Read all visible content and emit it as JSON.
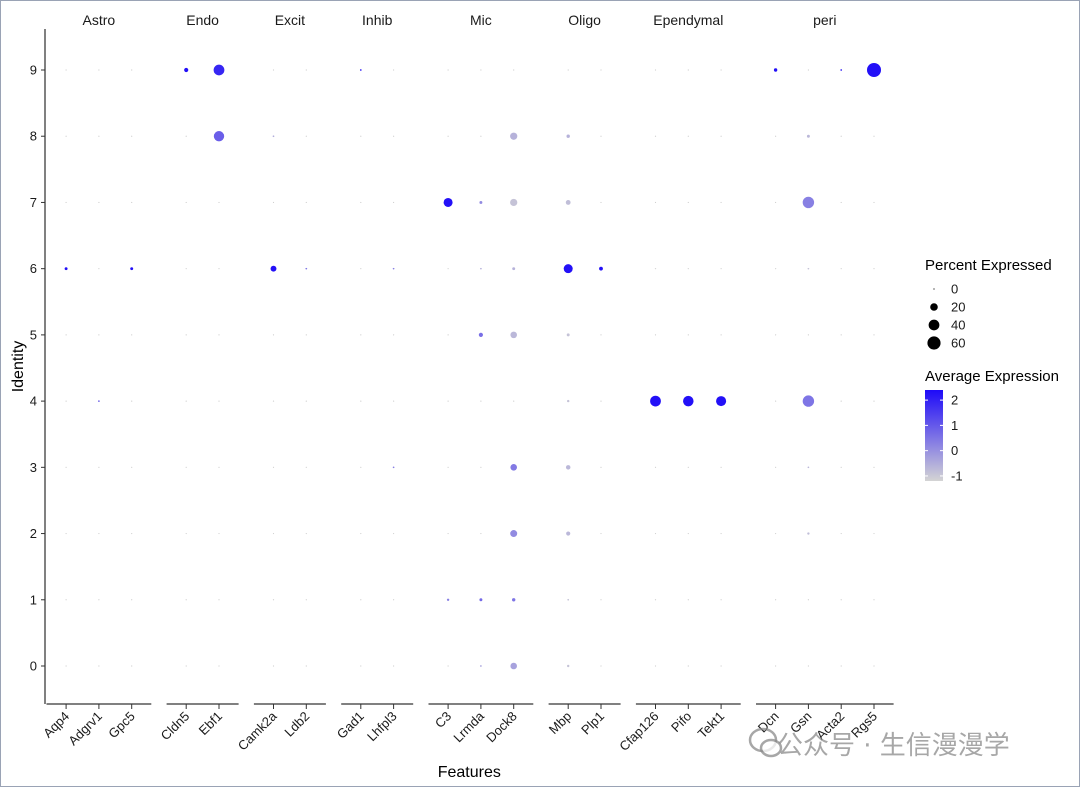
{
  "chart_data": {
    "type": "dotplot",
    "xlabel": "Features",
    "ylabel": "Identity",
    "identities": [
      "0",
      "1",
      "2",
      "3",
      "4",
      "5",
      "6",
      "7",
      "8",
      "9"
    ],
    "groups": [
      {
        "name": "Astro",
        "features": [
          "Aqp4",
          "Adgrv1",
          "Gpc5"
        ]
      },
      {
        "name": "Endo",
        "features": [
          "Cldn5",
          "Ebf1"
        ]
      },
      {
        "name": "Excit",
        "features": [
          "Camk2a",
          "Ldb2"
        ]
      },
      {
        "name": "Inhib",
        "features": [
          "Gad1",
          "Lhfpl3"
        ]
      },
      {
        "name": "Mic",
        "features": [
          "C3",
          "Lrmda",
          "Dock8"
        ]
      },
      {
        "name": "Oligo",
        "features": [
          "Mbp",
          "Plp1"
        ]
      },
      {
        "name": "Ependymal",
        "features": [
          "Cfap126",
          "Pifo",
          "Tekt1"
        ]
      },
      {
        "name": "peri",
        "features": [
          "Dcn",
          "Gsn",
          "Acta2",
          "Rgs5"
        ]
      }
    ],
    "points": [
      {
        "feature": "Aqp4",
        "identity": "6",
        "pct": 3,
        "avg": 2.3
      },
      {
        "feature": "Adgrv1",
        "identity": "4",
        "pct": 1,
        "avg": 0.8
      },
      {
        "feature": "Gpc5",
        "identity": "6",
        "pct": 3,
        "avg": 2.3
      },
      {
        "feature": "Cldn5",
        "identity": "9",
        "pct": 6,
        "avg": 2.3
      },
      {
        "feature": "Ebf1",
        "identity": "9",
        "pct": 40,
        "avg": 1.9
      },
      {
        "feature": "Ebf1",
        "identity": "8",
        "pct": 37,
        "avg": 0.9
      },
      {
        "feature": "Camk2a",
        "identity": "6",
        "pct": 12,
        "avg": 2.3
      },
      {
        "feature": "Camk2a",
        "identity": "8",
        "pct": 1,
        "avg": -0.5
      },
      {
        "feature": "Ldb2",
        "identity": "6",
        "pct": 1,
        "avg": 0.5
      },
      {
        "feature": "Gad1",
        "identity": "9",
        "pct": 1,
        "avg": 2.0
      },
      {
        "feature": "Lhfpl3",
        "identity": "6",
        "pct": 1,
        "avg": 0.3
      },
      {
        "feature": "Lhfpl3",
        "identity": "3",
        "pct": 1,
        "avg": 0.3
      },
      {
        "feature": "C3",
        "identity": "7",
        "pct": 28,
        "avg": 2.3
      },
      {
        "feature": "C3",
        "identity": "1",
        "pct": 2,
        "avg": 0.3
      },
      {
        "feature": "Lrmda",
        "identity": "7",
        "pct": 3,
        "avg": 0.1
      },
      {
        "feature": "Lrmda",
        "identity": "6",
        "pct": 1,
        "avg": -0.6
      },
      {
        "feature": "Lrmda",
        "identity": "5",
        "pct": 6,
        "avg": 0.6
      },
      {
        "feature": "Lrmda",
        "identity": "1",
        "pct": 3,
        "avg": 0.7
      },
      {
        "feature": "Lrmda",
        "identity": "0",
        "pct": 1,
        "avg": -0.3
      },
      {
        "feature": "Dock8",
        "identity": "8",
        "pct": 18,
        "avg": -0.6
      },
      {
        "feature": "Dock8",
        "identity": "7",
        "pct": 18,
        "avg": -0.9
      },
      {
        "feature": "Dock8",
        "identity": "6",
        "pct": 3,
        "avg": -0.6
      },
      {
        "feature": "Dock8",
        "identity": "5",
        "pct": 15,
        "avg": -0.7
      },
      {
        "feature": "Dock8",
        "identity": "3",
        "pct": 15,
        "avg": 0.4
      },
      {
        "feature": "Dock8",
        "identity": "2",
        "pct": 17,
        "avg": 0.1
      },
      {
        "feature": "Dock8",
        "identity": "1",
        "pct": 4,
        "avg": 0.5
      },
      {
        "feature": "Dock8",
        "identity": "0",
        "pct": 15,
        "avg": -0.3
      },
      {
        "feature": "Mbp",
        "identity": "8",
        "pct": 4,
        "avg": -0.6
      },
      {
        "feature": "Mbp",
        "identity": "7",
        "pct": 8,
        "avg": -0.8
      },
      {
        "feature": "Mbp",
        "identity": "6",
        "pct": 28,
        "avg": 2.3
      },
      {
        "feature": "Mbp",
        "identity": "5",
        "pct": 3,
        "avg": -0.9
      },
      {
        "feature": "Mbp",
        "identity": "4",
        "pct": 2,
        "avg": -0.9
      },
      {
        "feature": "Mbp",
        "identity": "3",
        "pct": 7,
        "avg": -0.7
      },
      {
        "feature": "Mbp",
        "identity": "2",
        "pct": 6,
        "avg": -0.7
      },
      {
        "feature": "Mbp",
        "identity": "1",
        "pct": 1,
        "avg": -0.9
      },
      {
        "feature": "Mbp",
        "identity": "0",
        "pct": 2,
        "avg": -0.9
      },
      {
        "feature": "Plp1",
        "identity": "6",
        "pct": 5,
        "avg": 2.3
      },
      {
        "feature": "Cfap126",
        "identity": "4",
        "pct": 40,
        "avg": 2.3
      },
      {
        "feature": "Pifo",
        "identity": "4",
        "pct": 38,
        "avg": 2.3
      },
      {
        "feature": "Tekt1",
        "identity": "4",
        "pct": 35,
        "avg": 2.3
      },
      {
        "feature": "Dcn",
        "identity": "9",
        "pct": 4,
        "avg": 2.3
      },
      {
        "feature": "Gsn",
        "identity": "8",
        "pct": 3,
        "avg": -0.7
      },
      {
        "feature": "Gsn",
        "identity": "7",
        "pct": 45,
        "avg": 0.3
      },
      {
        "feature": "Gsn",
        "identity": "6",
        "pct": 1,
        "avg": -0.9
      },
      {
        "feature": "Gsn",
        "identity": "4",
        "pct": 45,
        "avg": 0.5
      },
      {
        "feature": "Gsn",
        "identity": "3",
        "pct": 1,
        "avg": -0.7
      },
      {
        "feature": "Gsn",
        "identity": "2",
        "pct": 2,
        "avg": -0.8
      },
      {
        "feature": "Acta2",
        "identity": "9",
        "pct": 1,
        "avg": 2.0
      },
      {
        "feature": "Rgs5",
        "identity": "9",
        "pct": 68,
        "avg": 2.3
      }
    ],
    "size_legend": {
      "title": "Percent Expressed",
      "breaks": [
        "0",
        "20",
        "40",
        "60"
      ],
      "values": [
        0,
        20,
        40,
        60
      ]
    },
    "color_legend": {
      "title": "Average Expression",
      "breaks": [
        "2",
        "1",
        "0",
        "-1"
      ],
      "values": [
        2,
        1,
        0,
        -1
      ],
      "low": "#d4d4d4",
      "high": "#1e0af8",
      "range": [
        -1.2,
        2.4
      ]
    }
  },
  "watermark": {
    "text": "公众号 · 生信漫漫学"
  }
}
